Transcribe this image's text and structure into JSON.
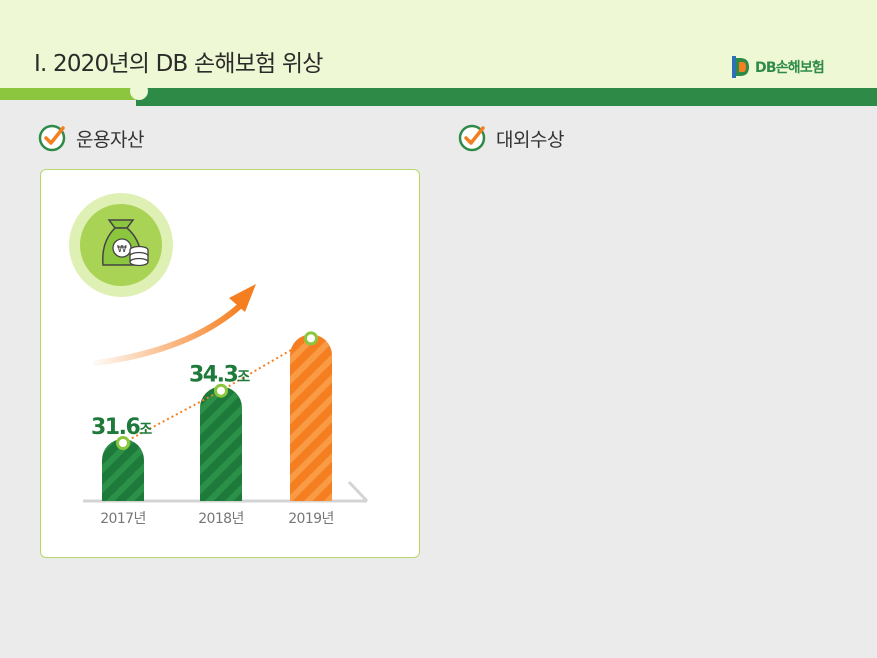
{
  "header": {
    "title": "Ⅰ. 2020년의 DB 손해보험 위상",
    "logo_text": "DB손해보험"
  },
  "sections": [
    {
      "title": "운용자산"
    },
    {
      "title": "대외수상"
    }
  ],
  "colors": {
    "header_bg": "#eff8d4",
    "dark_green": "#2d8b47",
    "light_green": "#8cc63f",
    "orange": "#f57f20",
    "bar_green": "#1e7a3a"
  },
  "chart_data": {
    "type": "bar",
    "categories": [
      "2017년",
      "2018년",
      "2019년"
    ],
    "values": [
      31.6,
      34.3,
      37.0
    ],
    "data_labels": [
      "31.6",
      "34.3",
      ""
    ],
    "unit": "조",
    "title": "",
    "xlabel": "",
    "ylabel": "",
    "ylim": [
      28.4,
      38.0
    ],
    "highlight_index": 2
  }
}
